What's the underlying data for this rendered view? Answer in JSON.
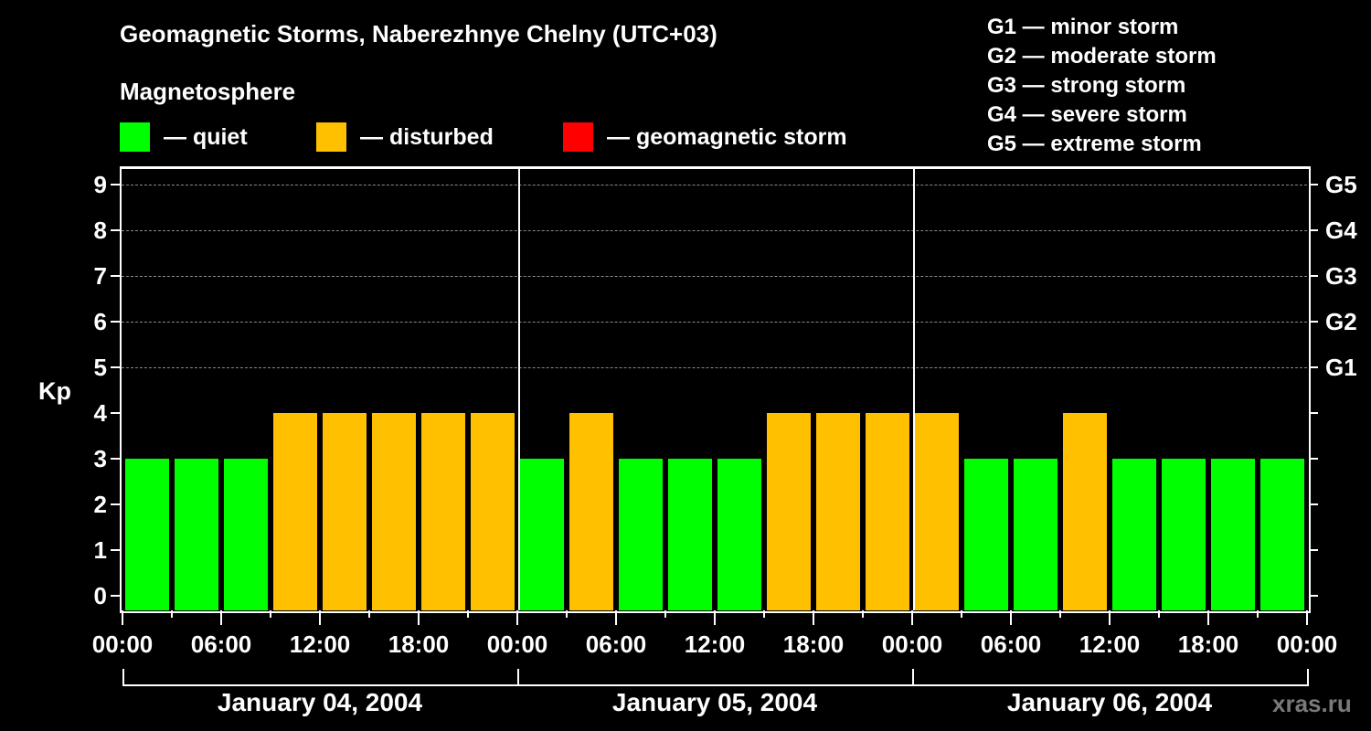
{
  "header": {
    "title": "Geomagnetic Storms, Naberezhnye Chelny (UTC+03)",
    "subtitle": "Magnetosphere"
  },
  "legend": {
    "items": [
      {
        "label": "— quiet",
        "color": "#00ff00"
      },
      {
        "label": "— disturbed",
        "color": "#ffc000"
      },
      {
        "label": "— geomagnetic storm",
        "color": "#ff0000"
      }
    ]
  },
  "g_scale": [
    "G1 — minor storm",
    "G2 — moderate storm",
    "G3 — strong storm",
    "G4 — severe storm",
    "G5 — extreme storm"
  ],
  "axes": {
    "ylabel": "Kp",
    "yticks": [
      "0",
      "1",
      "2",
      "3",
      "4",
      "5",
      "6",
      "7",
      "8",
      "9"
    ],
    "right_ticks": [
      "G1",
      "G2",
      "G3",
      "G4",
      "G5"
    ],
    "xticks": [
      "00:00",
      "06:00",
      "12:00",
      "18:00",
      "00:00",
      "06:00",
      "12:00",
      "18:00",
      "00:00",
      "06:00",
      "12:00",
      "18:00",
      "00:00"
    ],
    "days": [
      "January 04, 2004",
      "January 05, 2004",
      "January 06, 2004"
    ]
  },
  "watermark": "xras.ru",
  "colors": {
    "quiet": "#00ff00",
    "disturbed": "#ffc000",
    "storm": "#ff0000",
    "background": "#000000",
    "grid": "#8a8a8a"
  },
  "chart_data": {
    "type": "bar",
    "title": "Geomagnetic Storms, Naberezhnye Chelny (UTC+03)",
    "xlabel": "",
    "ylabel": "Kp",
    "ylim": [
      0,
      9
    ],
    "grid": true,
    "legend_position": "top",
    "categories": [
      "Jan 04 00:00",
      "Jan 04 03:00",
      "Jan 04 06:00",
      "Jan 04 09:00",
      "Jan 04 12:00",
      "Jan 04 15:00",
      "Jan 04 18:00",
      "Jan 04 21:00",
      "Jan 05 00:00",
      "Jan 05 03:00",
      "Jan 05 06:00",
      "Jan 05 09:00",
      "Jan 05 12:00",
      "Jan 05 15:00",
      "Jan 05 18:00",
      "Jan 05 21:00",
      "Jan 06 00:00",
      "Jan 06 03:00",
      "Jan 06 06:00",
      "Jan 06 09:00",
      "Jan 06 12:00",
      "Jan 06 15:00",
      "Jan 06 18:00",
      "Jan 06 21:00"
    ],
    "values": [
      3,
      3,
      3,
      4,
      4,
      4,
      4,
      4,
      3,
      4,
      3,
      3,
      3,
      4,
      4,
      4,
      4,
      3,
      3,
      4,
      3,
      3,
      3,
      3
    ],
    "status": [
      "quiet",
      "quiet",
      "quiet",
      "disturbed",
      "disturbed",
      "disturbed",
      "disturbed",
      "disturbed",
      "quiet",
      "disturbed",
      "quiet",
      "quiet",
      "quiet",
      "disturbed",
      "disturbed",
      "disturbed",
      "disturbed",
      "quiet",
      "quiet",
      "disturbed",
      "quiet",
      "quiet",
      "quiet",
      "quiet"
    ],
    "right_axis": {
      "G1": 5,
      "G2": 6,
      "G3": 7,
      "G4": 8,
      "G5": 9
    }
  }
}
